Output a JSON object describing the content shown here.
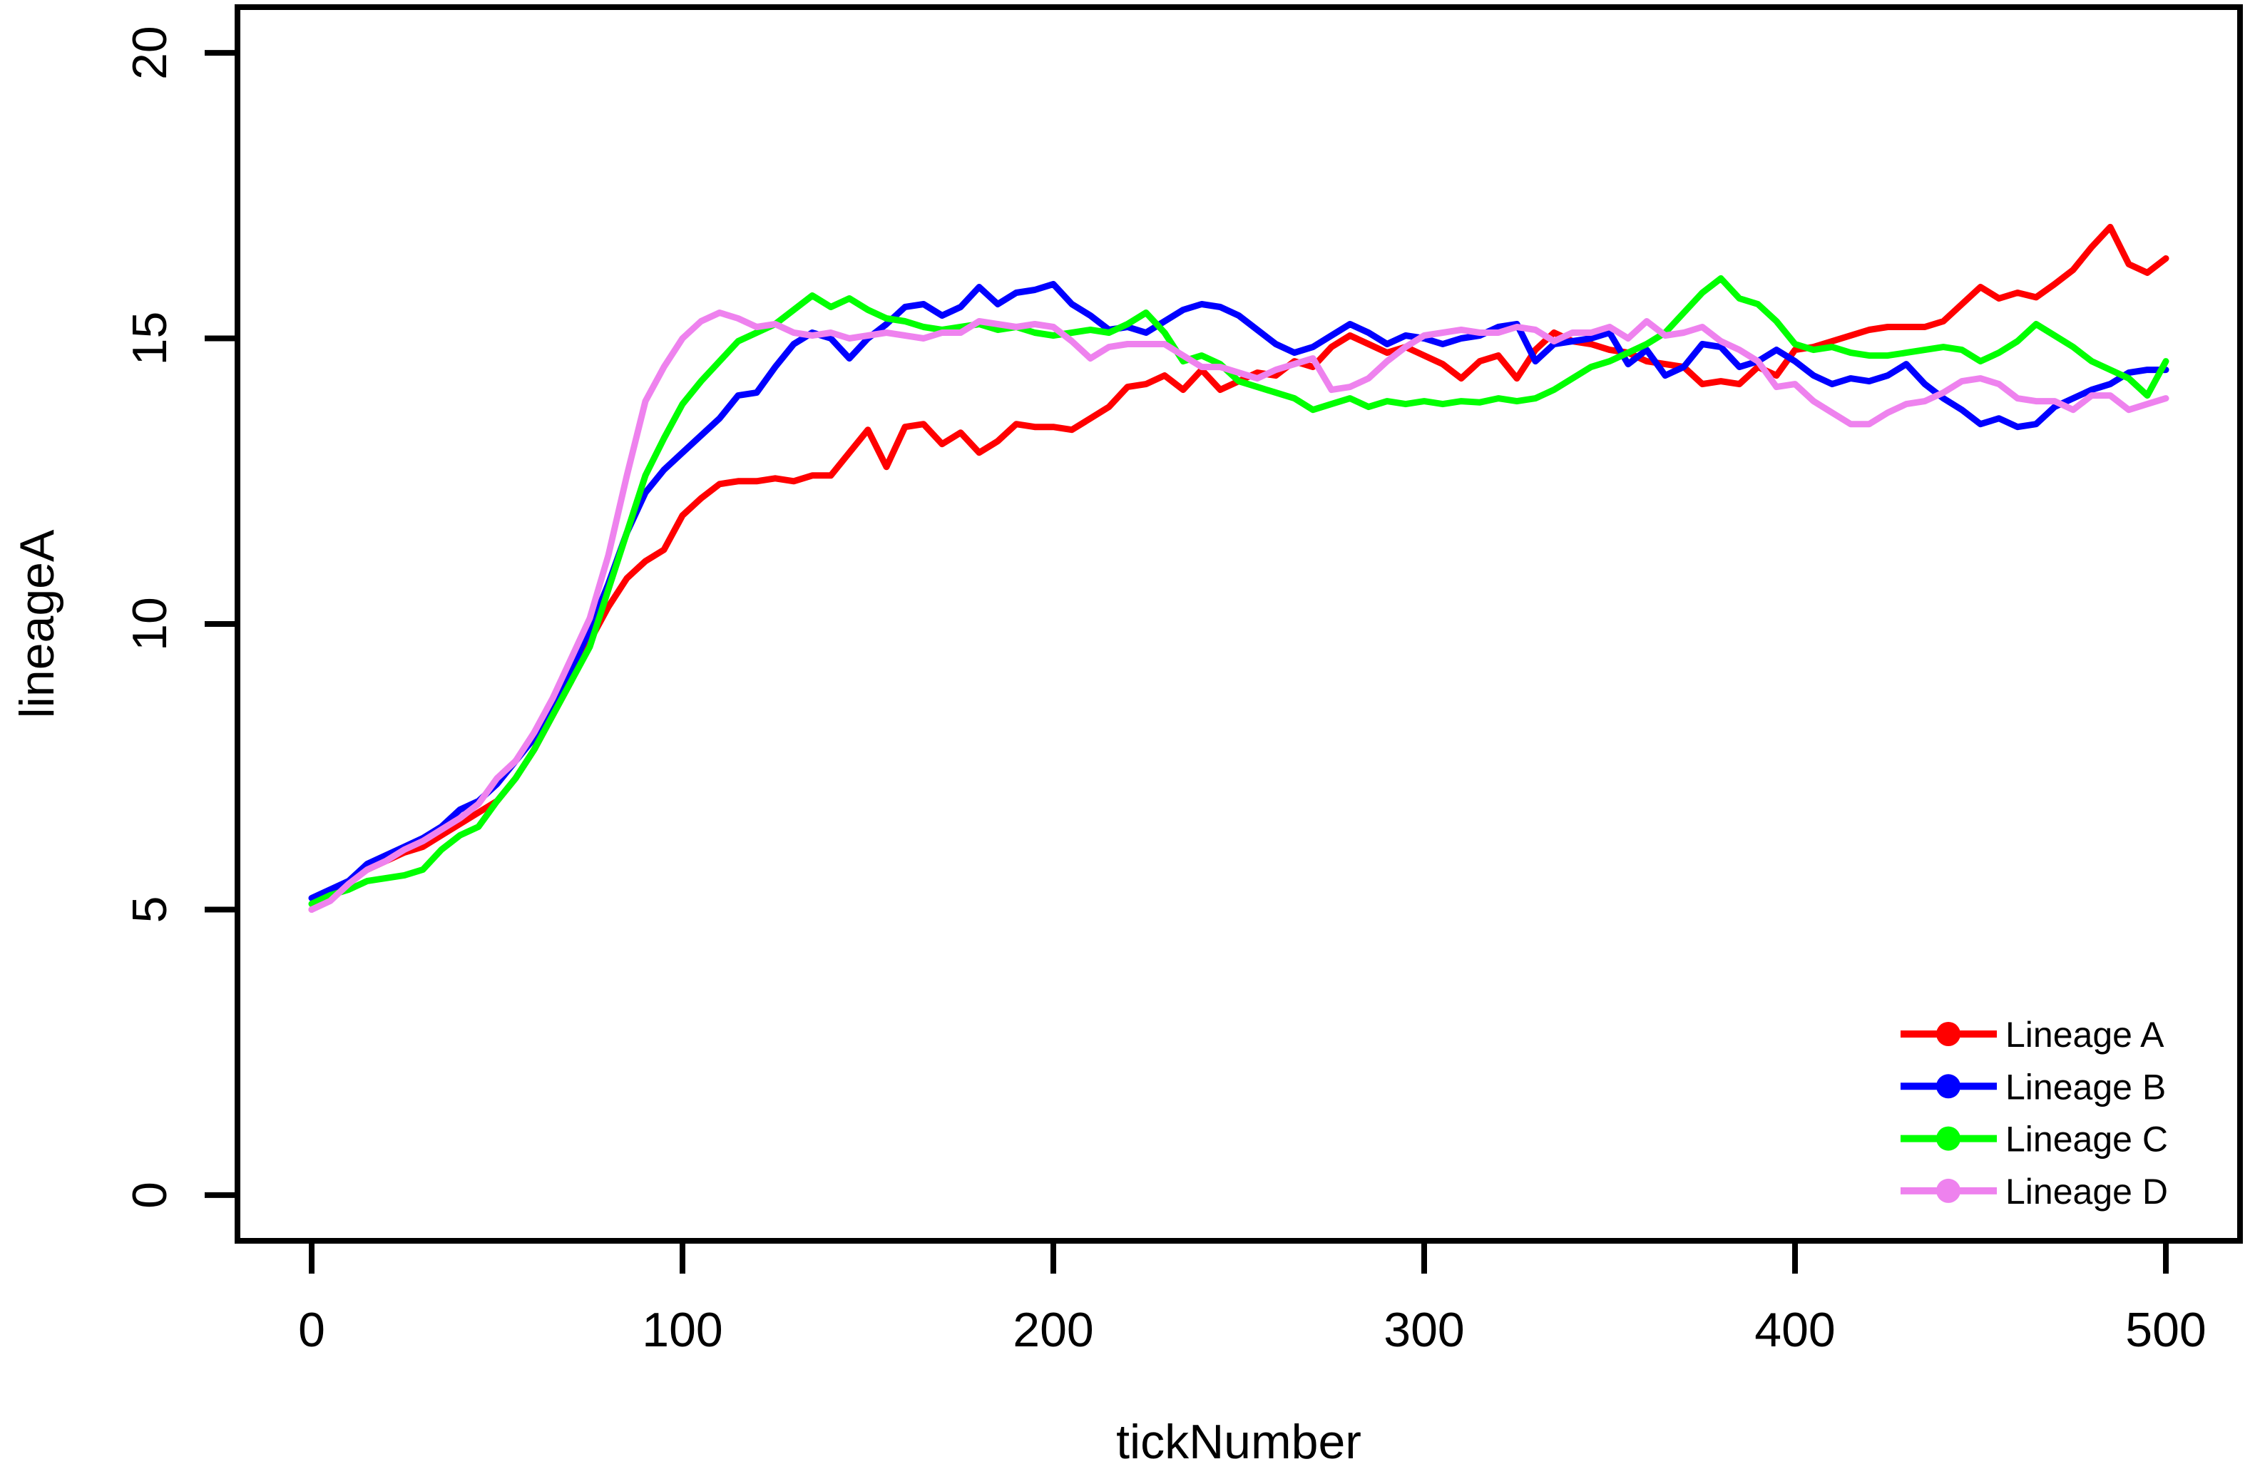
{
  "figure": {
    "background": "#FFFFFF",
    "box_color": "#000000"
  },
  "axes": {
    "xlabel": "tickNumber",
    "ylabel": "lineageA",
    "x_ticks": [
      0,
      100,
      200,
      300,
      400,
      500
    ],
    "y_ticks": [
      0,
      5,
      10,
      15,
      20
    ],
    "x_range": [
      -20,
      520
    ],
    "y_range": [
      -0.8,
      20.8
    ]
  },
  "chart_data": {
    "type": "line",
    "title": "",
    "xlabel": "tickNumber",
    "ylabel": "lineageA",
    "xlim": [
      0,
      500
    ],
    "ylim": [
      0,
      20
    ],
    "grid": false,
    "legend_position": "bottomright",
    "x_start": 0,
    "x_step": 5,
    "series": [
      {
        "name": "Lineage A",
        "color": "#FF0000",
        "values": [
          5.0,
          5.3,
          5.5,
          5.7,
          5.85,
          6.0,
          6.1,
          6.3,
          6.5,
          6.7,
          6.9,
          7.3,
          7.8,
          8.4,
          9.0,
          9.7,
          10.3,
          10.8,
          11.1,
          11.3,
          11.9,
          12.2,
          12.45,
          12.5,
          12.5,
          12.55,
          12.5,
          12.6,
          12.6,
          13.0,
          13.4,
          12.75,
          13.45,
          13.5,
          13.15,
          13.35,
          13.0,
          13.2,
          13.5,
          13.45,
          13.45,
          13.4,
          13.6,
          13.8,
          14.15,
          14.2,
          14.35,
          14.1,
          14.45,
          14.1,
          14.25,
          14.4,
          14.35,
          14.6,
          14.5,
          14.85,
          15.05,
          14.9,
          14.75,
          14.85,
          14.7,
          14.55,
          14.3,
          14.6,
          14.7,
          14.3,
          14.8,
          15.1,
          14.95,
          14.9,
          14.8,
          14.75,
          14.6,
          14.55,
          14.5,
          14.2,
          14.25,
          14.2,
          14.5,
          14.35,
          14.8,
          14.85,
          14.95,
          15.05,
          15.15,
          15.2,
          15.2,
          15.2,
          15.3,
          15.6,
          15.9,
          15.7,
          15.8,
          15.72,
          15.95,
          16.2,
          16.6,
          16.95,
          16.3,
          16.15,
          16.4
        ]
      },
      {
        "name": "Lineage B",
        "color": "#0000FF",
        "values": [
          5.2,
          5.35,
          5.5,
          5.8,
          5.95,
          6.1,
          6.25,
          6.45,
          6.75,
          6.9,
          7.2,
          7.6,
          8.0,
          8.5,
          9.2,
          9.9,
          10.7,
          11.6,
          12.3,
          12.7,
          13.0,
          13.3,
          13.6,
          14.0,
          14.05,
          14.5,
          14.9,
          15.1,
          15.0,
          14.65,
          15.0,
          15.25,
          15.55,
          15.6,
          15.4,
          15.55,
          15.9,
          15.6,
          15.8,
          15.85,
          15.95,
          15.6,
          15.4,
          15.15,
          15.2,
          15.1,
          15.3,
          15.5,
          15.6,
          15.55,
          15.4,
          15.15,
          14.9,
          14.75,
          14.85,
          15.05,
          15.25,
          15.1,
          14.9,
          15.05,
          15.0,
          14.9,
          15.0,
          15.05,
          15.2,
          15.25,
          14.6,
          14.9,
          14.95,
          15.0,
          15.1,
          14.55,
          14.8,
          14.35,
          14.5,
          14.9,
          14.85,
          14.5,
          14.6,
          14.8,
          14.6,
          14.35,
          14.2,
          14.3,
          14.25,
          14.35,
          14.55,
          14.2,
          13.95,
          13.75,
          13.5,
          13.6,
          13.45,
          13.5,
          13.8,
          13.95,
          14.1,
          14.2,
          14.4,
          14.45,
          14.45
        ]
      },
      {
        "name": "Lineage C",
        "color": "#00FF00",
        "values": [
          5.1,
          5.25,
          5.35,
          5.5,
          5.55,
          5.6,
          5.7,
          6.05,
          6.3,
          6.45,
          6.9,
          7.3,
          7.8,
          8.4,
          9.0,
          9.6,
          10.6,
          11.6,
          12.6,
          13.25,
          13.85,
          14.25,
          14.6,
          14.95,
          15.1,
          15.25,
          15.5,
          15.75,
          15.55,
          15.7,
          15.5,
          15.35,
          15.3,
          15.2,
          15.15,
          15.2,
          15.25,
          15.15,
          15.2,
          15.1,
          15.05,
          15.1,
          15.15,
          15.1,
          15.25,
          15.45,
          15.1,
          14.6,
          14.7,
          14.55,
          14.25,
          14.15,
          14.05,
          13.95,
          13.75,
          13.85,
          13.95,
          13.8,
          13.9,
          13.85,
          13.9,
          13.85,
          13.9,
          13.88,
          13.95,
          13.9,
          13.95,
          14.1,
          14.3,
          14.5,
          14.6,
          14.75,
          14.9,
          15.1,
          15.45,
          15.8,
          16.05,
          15.7,
          15.6,
          15.3,
          14.9,
          14.8,
          14.85,
          14.75,
          14.7,
          14.7,
          14.75,
          14.8,
          14.85,
          14.8,
          14.6,
          14.75,
          14.95,
          15.25,
          15.05,
          14.85,
          14.6,
          14.45,
          14.3,
          14.0,
          14.6
        ]
      },
      {
        "name": "Lineage D",
        "color": "#EE82EE",
        "values": [
          5.0,
          5.15,
          5.45,
          5.7,
          5.85,
          6.05,
          6.2,
          6.4,
          6.6,
          6.85,
          7.3,
          7.6,
          8.1,
          8.7,
          9.4,
          10.1,
          11.2,
          12.6,
          13.9,
          14.5,
          15.0,
          15.3,
          15.45,
          15.35,
          15.2,
          15.25,
          15.1,
          15.05,
          15.1,
          15.0,
          15.05,
          15.1,
          15.05,
          15.0,
          15.1,
          15.1,
          15.3,
          15.25,
          15.2,
          15.25,
          15.2,
          14.95,
          14.65,
          14.85,
          14.9,
          14.9,
          14.9,
          14.7,
          14.5,
          14.5,
          14.4,
          14.3,
          14.45,
          14.55,
          14.65,
          14.1,
          14.15,
          14.3,
          14.6,
          14.85,
          15.05,
          15.1,
          15.15,
          15.1,
          15.1,
          15.2,
          15.15,
          14.95,
          15.1,
          15.1,
          15.2,
          15.0,
          15.3,
          15.05,
          15.1,
          15.2,
          14.95,
          14.8,
          14.6,
          14.15,
          14.2,
          13.9,
          13.7,
          13.5,
          13.5,
          13.7,
          13.85,
          13.9,
          14.05,
          14.25,
          14.3,
          14.2,
          13.95,
          13.9,
          13.9,
          13.75,
          14.0,
          14.0,
          13.75,
          13.85,
          13.95
        ]
      }
    ]
  },
  "legend": {
    "entries": [
      {
        "label": "Lineage A",
        "color": "#FF0000"
      },
      {
        "label": "Lineage B",
        "color": "#0000FF"
      },
      {
        "label": "Lineage C",
        "color": "#00FF00"
      },
      {
        "label": "Lineage D",
        "color": "#EE82EE"
      }
    ]
  }
}
